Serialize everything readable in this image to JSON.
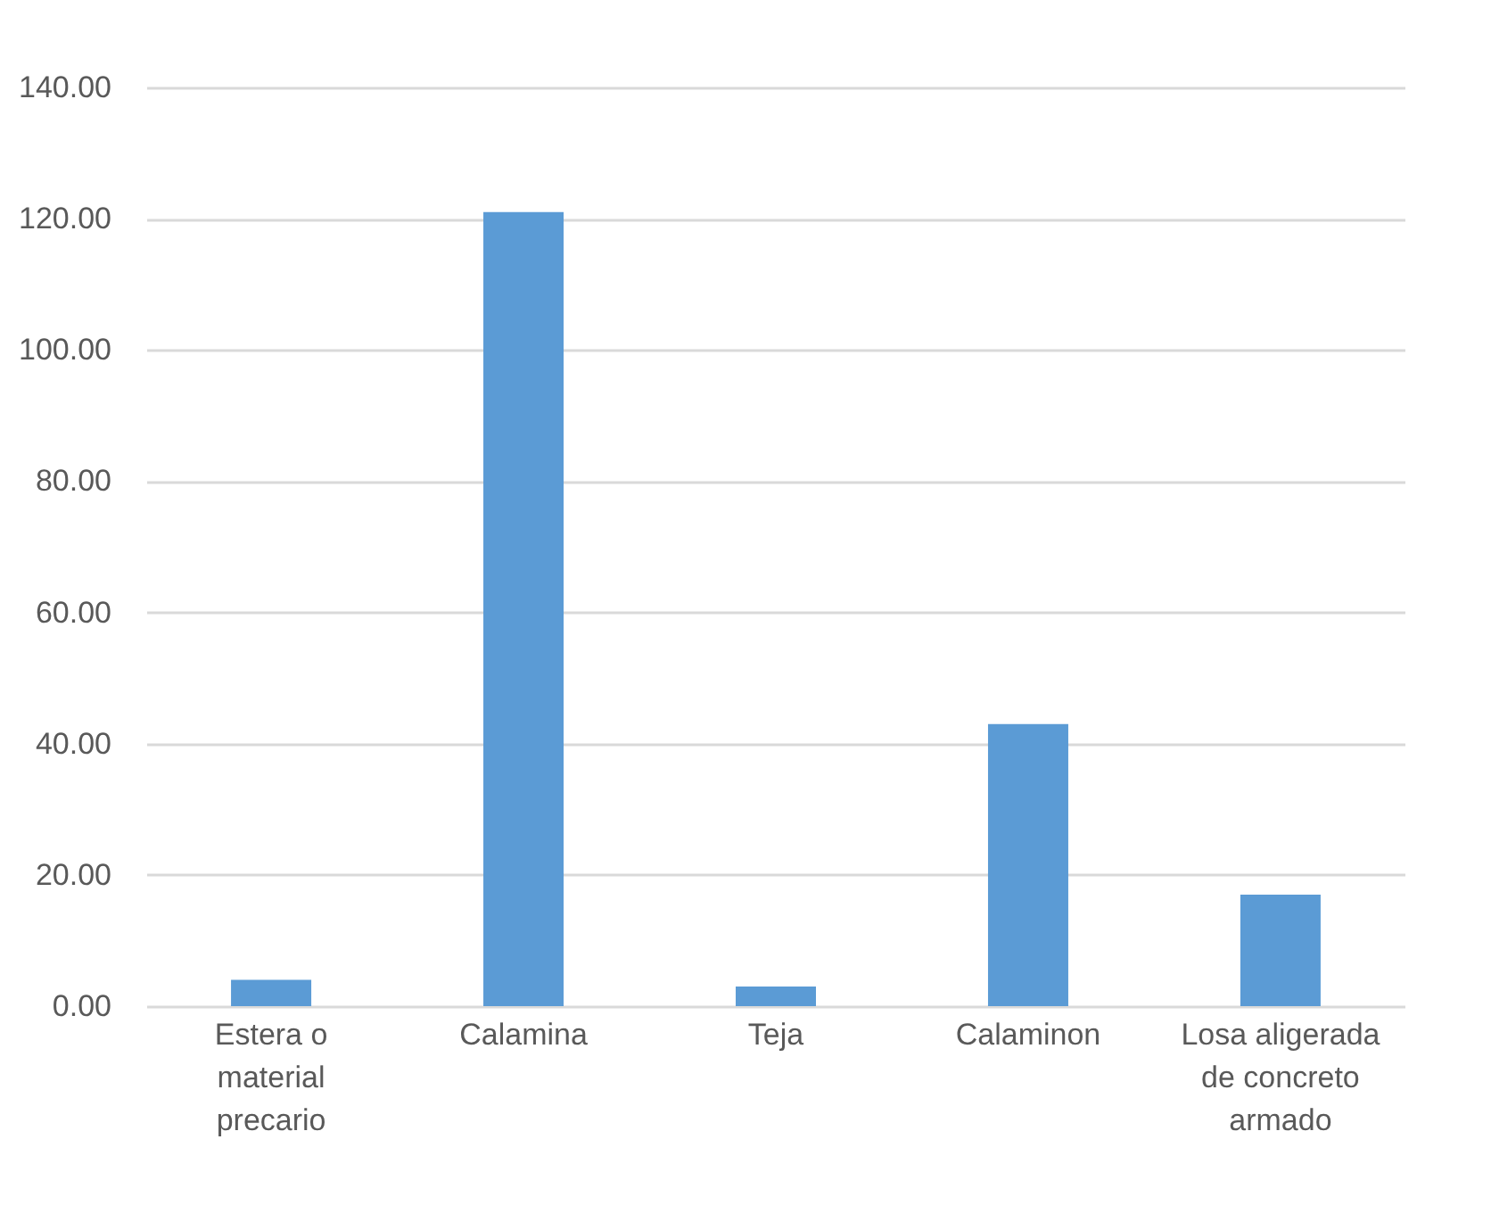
{
  "chart_data": {
    "type": "bar",
    "categories": [
      "Estera o material precario",
      "Calamina",
      "Teja",
      "Calaminon",
      "Losa aligerada de concreto armado"
    ],
    "values": [
      4,
      121,
      3,
      43,
      17
    ],
    "color": "#5b9bd5",
    "ylim": [
      0,
      140
    ],
    "yticks": [
      {
        "value": 0,
        "label": "0.00"
      },
      {
        "value": 20,
        "label": "20.00"
      },
      {
        "value": 40,
        "label": "40.00"
      },
      {
        "value": 60,
        "label": "60.00"
      },
      {
        "value": 80,
        "label": "80.00"
      },
      {
        "value": 100,
        "label": "100.00"
      },
      {
        "value": 120,
        "label": "120.00"
      },
      {
        "value": 140,
        "label": "140.00"
      }
    ],
    "grid": "y"
  }
}
